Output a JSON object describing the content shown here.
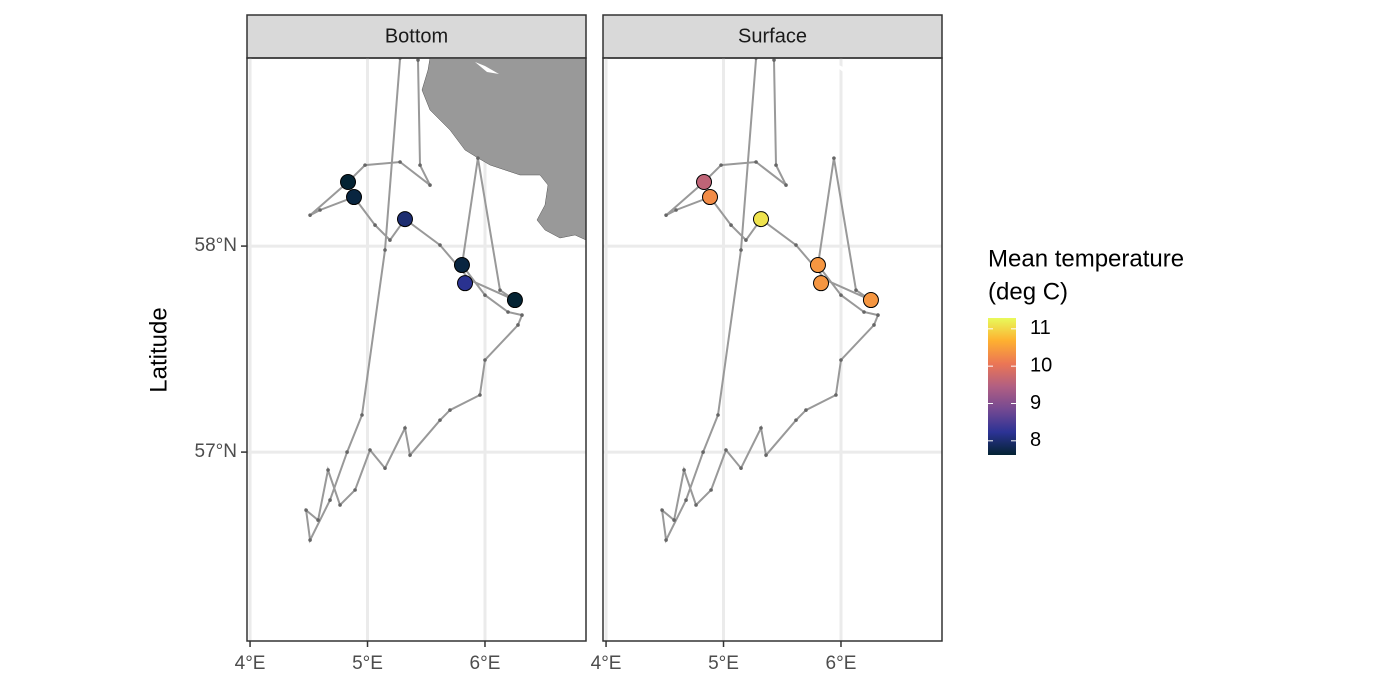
{
  "chart_data": {
    "type": "scatter",
    "y_label": "Latitude",
    "legend_title": [
      "Mean temperature",
      "(deg C)"
    ],
    "x": [
      4.834,
      4.885,
      5.319,
      5.804,
      5.83,
      6.255
    ],
    "y": [
      58.311,
      58.238,
      58.131,
      57.908,
      57.82,
      57.738
    ],
    "facets": [
      {
        "name": "Bottom",
        "values": [
          7.6,
          7.7,
          8.0,
          7.7,
          8.2,
          7.6
        ]
      },
      {
        "name": "Surface",
        "values": [
          9.6,
          10.3,
          11.1,
          10.4,
          10.4,
          10.4
        ]
      }
    ],
    "track": {
      "x": [
        5.277,
        5.149,
        4.953,
        4.826,
        4.681,
        4.511,
        4.477,
        4.579,
        4.664,
        4.766,
        4.894,
        5.021,
        5.149,
        5.319,
        5.362,
        5.617,
        5.702,
        5.957,
        6.0,
        6.281,
        6.315,
        6.196,
        6.0,
        5.804,
        5.94,
        6.128,
        6.255,
        5.872,
        5.617,
        5.319,
        5.191,
        5.064,
        4.885,
        4.596,
        4.511,
        4.834,
        4.979,
        5.277,
        5.532,
        5.447,
        5.43
      ],
      "y": [
        58.913,
        57.981,
        57.18,
        57.0,
        56.767,
        56.573,
        56.718,
        56.67,
        56.913,
        56.743,
        56.816,
        57.01,
        56.922,
        57.117,
        56.985,
        57.155,
        57.204,
        57.277,
        57.447,
        57.617,
        57.665,
        57.68,
        57.762,
        57.908,
        58.427,
        57.786,
        57.738,
        57.835,
        58.005,
        58.131,
        58.029,
        58.102,
        58.238,
        58.175,
        58.15,
        58.311,
        58.393,
        58.408,
        58.296,
        58.393,
        58.903
      ],
      "color": "#999999"
    },
    "xlim": [
      3.974,
      6.86
    ],
    "ylim": [
      56.083,
      58.913
    ],
    "xticks": [
      {
        "value": 4,
        "label": "4°E"
      },
      {
        "value": 5,
        "label": "5°E"
      },
      {
        "value": 6,
        "label": "6°E"
      }
    ],
    "yticks": [
      {
        "value": 57,
        "label": "57°N"
      },
      {
        "value": 58,
        "label": "58°N"
      }
    ],
    "grid": true,
    "colorbar": {
      "lim": [
        7.62,
        11.29
      ],
      "ticks": [
        8,
        9,
        10,
        11
      ],
      "colors": [
        "#042333",
        "#2c3395",
        "#744992",
        "#b15f82",
        "#eb7655",
        "#feb030",
        "#e8fa5b"
      ]
    }
  }
}
